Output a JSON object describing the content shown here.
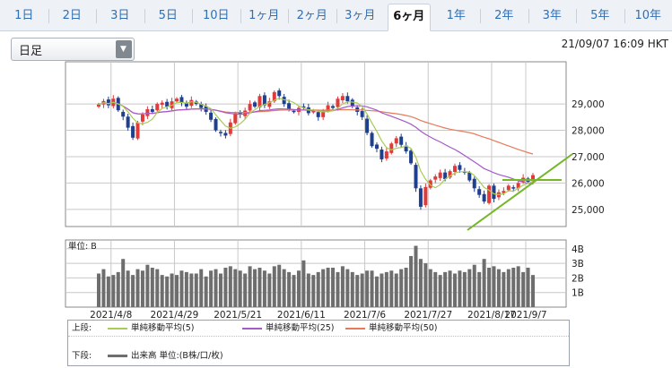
{
  "tabs": [
    {
      "label": "1日",
      "active": false
    },
    {
      "label": "2日",
      "active": false
    },
    {
      "label": "3日",
      "active": false
    },
    {
      "label": "5日",
      "active": false
    },
    {
      "label": "10日",
      "active": false
    },
    {
      "label": "1ヶ月",
      "active": false
    },
    {
      "label": "2ヶ月",
      "active": false
    },
    {
      "label": "3ヶ月",
      "active": false
    },
    {
      "label": "6ヶ月",
      "active": true
    },
    {
      "label": "1年",
      "active": false
    },
    {
      "label": "2年",
      "active": false
    },
    {
      "label": "3年",
      "active": false
    },
    {
      "label": "5年",
      "active": false
    },
    {
      "label": "10年",
      "active": false
    }
  ],
  "period_select": {
    "value": "日足"
  },
  "timestamp": "21/09/07 16:09 HKT",
  "legend": {
    "upper_label": "上段:",
    "lower_label": "下段:",
    "ma5": "単純移動平均(5)",
    "ma25": "単純移動平均(25)",
    "ma50": "単純移動平均(50)",
    "volume": "出来高 単位:(B株/口/枚)"
  },
  "colors": {
    "up": "#e03a3a",
    "down": "#1f3f8f",
    "ma5": "#a9cc55",
    "ma25": "#a45ac8",
    "ma50": "#e87a5a",
    "trend": "#76b72a",
    "volume": "#6e6e6e",
    "grid": "#c8c8c8"
  },
  "chart_data": {
    "type": "candlestick",
    "date_ticks": [
      "2021/4/8",
      "2021/4/29",
      "2021/5/21",
      "2021/6/11",
      "2021/7/6",
      "2021/7/27",
      "2021/8/17",
      "2021/9/7"
    ],
    "price_axis": {
      "ticks": [
        25000,
        26000,
        27000,
        28000,
        29000
      ],
      "labels": [
        "25,000",
        "26,000",
        "27,000",
        "28,000",
        "29,000"
      ],
      "ylim": [
        24350,
        30600
      ]
    },
    "volume_axis": {
      "unit_label": "単位: B",
      "ticks": [
        1,
        2,
        3,
        4
      ],
      "labels": [
        "1B",
        "2B",
        "3B",
        "4B"
      ],
      "ylim": [
        0,
        4.6
      ]
    },
    "moving_averages": [
      "SMA(5)",
      "SMA(25)",
      "SMA(50)"
    ],
    "close": [
      28980,
      29110,
      28950,
      29200,
      28760,
      28520,
      28100,
      27720,
      28300,
      28600,
      28800,
      28700,
      29000,
      29050,
      28900,
      29100,
      29200,
      29050,
      28900,
      29150,
      29000,
      28850,
      28700,
      28400,
      28000,
      27900,
      27800,
      28300,
      28650,
      28600,
      28750,
      29000,
      28900,
      29300,
      28950,
      29100,
      29450,
      29300,
      29000,
      28800,
      28700,
      28850,
      28900,
      28650,
      28750,
      28500,
      28700,
      28950,
      28850,
      29200,
      29300,
      29100,
      28900,
      28700,
      28500,
      27900,
      27400,
      27300,
      26900,
      27200,
      27500,
      27700,
      27450,
      27200,
      26750,
      25800,
      25100,
      25850,
      26100,
      26250,
      26400,
      26150,
      26450,
      26650,
      26500,
      26400,
      26100,
      25800,
      25550,
      25300,
      25900,
      25400,
      25650,
      25700,
      25900,
      25800,
      26000,
      26200,
      26050,
      26300
    ],
    "volume": [
      2.3,
      2.6,
      2.1,
      2.2,
      2.4,
      3.3,
      2.5,
      2.2,
      2.6,
      2.5,
      2.9,
      2.7,
      2.6,
      2.2,
      2.1,
      2.3,
      2.2,
      2.5,
      2.4,
      2.3,
      2.3,
      2.6,
      2.1,
      2.5,
      2.6,
      2.3,
      2.7,
      2.8,
      2.6,
      2.5,
      2.3,
      2.8,
      2.6,
      2.7,
      2.5,
      2.3,
      2.8,
      2.9,
      2.6,
      2.4,
      2.2,
      2.5,
      3.2,
      2.3,
      2.2,
      2.4,
      2.6,
      2.7,
      2.7,
      2.4,
      2.8,
      2.6,
      2.4,
      2.2,
      2.3,
      2.5,
      2.5,
      2.1,
      2.3,
      2.4,
      2.5,
      2.3,
      2.6,
      2.7,
      3.5,
      4.2,
      3.3,
      3.0,
      2.6,
      2.4,
      2.2,
      2.4,
      2.5,
      2.3,
      2.5,
      2.4,
      2.6,
      2.9,
      2.4,
      3.3,
      2.7,
      2.8,
      2.6,
      2.4,
      2.6,
      2.7,
      2.8,
      2.4,
      2.7,
      2.2
    ]
  }
}
